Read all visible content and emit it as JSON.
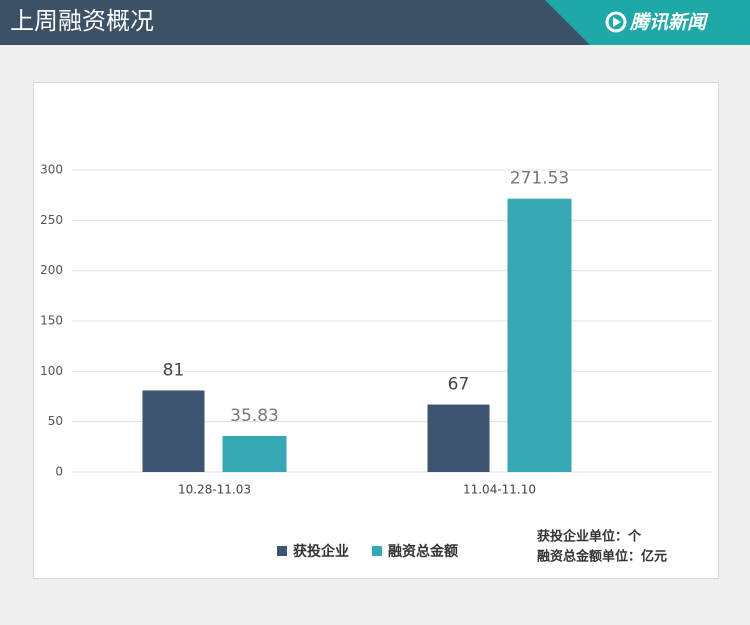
{
  "chart_data": {
    "type": "bar",
    "title": "上周融资概况",
    "brand": "腾讯新闻",
    "categories": [
      "10.28-11.03",
      "11.04-11.10"
    ],
    "series": [
      {
        "name": "获投企业",
        "color": "#3d5470",
        "values": [
          81,
          67
        ]
      },
      {
        "name": "融资总金额",
        "color": "#35a8b3",
        "values": [
          35.83,
          271.53
        ]
      }
    ],
    "ylim": [
      0,
      300
    ],
    "yticks": [
      0,
      50,
      100,
      150,
      200,
      250,
      300
    ],
    "grid": true,
    "legend": "bottom",
    "annotations": [
      "获投企业单位：个",
      "融资总金额单位：亿元"
    ]
  }
}
